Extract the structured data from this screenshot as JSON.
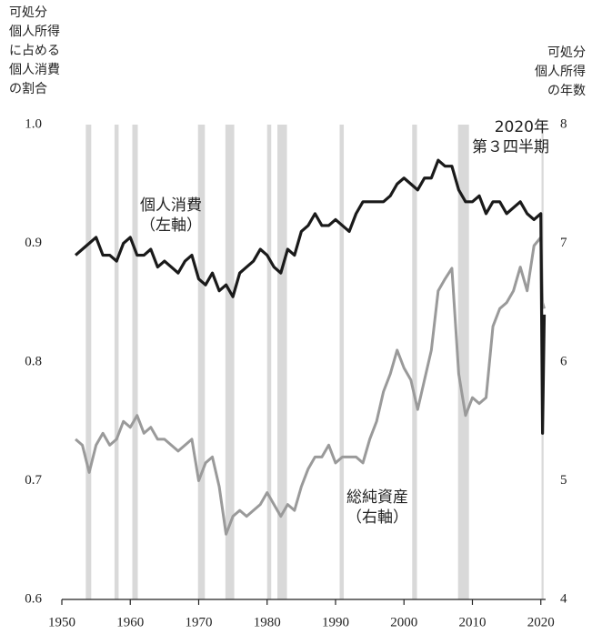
{
  "chart_data": {
    "type": "line",
    "y_axis_label": [
      "可処分",
      "個人所得",
      "に占める",
      "個人消費",
      "の割合"
    ],
    "y2_axis_label": [
      "可処分",
      "個人所得",
      "の年数"
    ],
    "annotations": [
      {
        "lines": [
          "2020年",
          "第３四半期"
        ]
      },
      {
        "lines": [
          "個人消費",
          "（左軸）"
        ]
      },
      {
        "lines": [
          "総純資産",
          "（右軸）"
        ]
      }
    ],
    "x": [
      1952,
      1953,
      1954,
      1955,
      1956,
      1957,
      1958,
      1959,
      1960,
      1961,
      1962,
      1963,
      1964,
      1965,
      1966,
      1967,
      1968,
      1969,
      1970,
      1971,
      1972,
      1973,
      1974,
      1975,
      1976,
      1977,
      1978,
      1979,
      1980,
      1981,
      1982,
      1983,
      1984,
      1985,
      1986,
      1987,
      1988,
      1989,
      1990,
      1991,
      1992,
      1993,
      1994,
      1995,
      1996,
      1997,
      1998,
      1999,
      2000,
      2001,
      2002,
      2003,
      2004,
      2005,
      2006,
      2007,
      2008,
      2009,
      2010,
      2011,
      2012,
      2013,
      2014,
      2015,
      2016,
      2017,
      2018,
      2019,
      2020,
      2020.25,
      2020.5
    ],
    "series": [
      {
        "name": "個人消費",
        "color": "#1a1a1a",
        "values": [
          0.89,
          0.895,
          0.9,
          0.905,
          0.89,
          0.89,
          0.885,
          0.9,
          0.905,
          0.89,
          0.89,
          0.895,
          0.88,
          0.885,
          0.88,
          0.875,
          0.885,
          0.89,
          0.87,
          0.865,
          0.875,
          0.86,
          0.865,
          0.855,
          0.875,
          0.88,
          0.885,
          0.895,
          0.89,
          0.88,
          0.875,
          0.895,
          0.89,
          0.91,
          0.915,
          0.925,
          0.915,
          0.915,
          0.92,
          0.915,
          0.91,
          0.925,
          0.935,
          0.935,
          0.935,
          0.935,
          0.94,
          0.95,
          0.955,
          0.95,
          0.945,
          0.955,
          0.955,
          0.97,
          0.965,
          0.965,
          0.945,
          0.935,
          0.935,
          0.94,
          0.925,
          0.935,
          0.935,
          0.925,
          0.93,
          0.935,
          0.925,
          0.92,
          0.925,
          0.74,
          0.84
        ]
      },
      {
        "name": "総純資産",
        "color": "#9a9a9a",
        "axis": "y2",
        "values": [
          5.35,
          5.3,
          5.07,
          5.3,
          5.4,
          5.3,
          5.35,
          5.5,
          5.45,
          5.55,
          5.4,
          5.45,
          5.35,
          5.35,
          5.3,
          5.25,
          5.3,
          5.35,
          5.0,
          5.15,
          5.2,
          4.95,
          4.55,
          4.7,
          4.75,
          4.7,
          4.75,
          4.8,
          4.9,
          4.8,
          4.7,
          4.8,
          4.75,
          4.95,
          5.1,
          5.2,
          5.2,
          5.3,
          5.15,
          5.2,
          5.2,
          5.2,
          5.15,
          5.35,
          5.5,
          5.75,
          5.9,
          6.1,
          5.95,
          5.85,
          5.6,
          5.85,
          6.1,
          6.6,
          6.7,
          6.79,
          5.9,
          5.55,
          5.7,
          5.65,
          5.7,
          6.3,
          6.45,
          6.5,
          6.6,
          6.8,
          6.6,
          6.98,
          7.05,
          6.5,
          6.45
        ]
      }
    ],
    "recessions": [
      [
        1953.5,
        1954.3
      ],
      [
        1957.7,
        1958.3
      ],
      [
        1960.3,
        1961.1
      ],
      [
        1969.9,
        1970.9
      ],
      [
        1973.9,
        1975.2
      ],
      [
        1980.0,
        1980.6
      ],
      [
        1981.5,
        1982.9
      ],
      [
        1990.6,
        1991.2
      ],
      [
        2001.2,
        2001.9
      ],
      [
        2007.9,
        2009.5
      ],
      [
        2020.1,
        2020.4
      ]
    ],
    "recession_color": "#d9d9d9",
    "xlim": [
      1950,
      2020.7
    ],
    "xticks": [
      1950,
      1960,
      1970,
      1980,
      1990,
      2000,
      2010,
      2020
    ],
    "ylim": [
      0.6,
      1.0
    ],
    "yticks": [
      0.6,
      0.7,
      0.8,
      0.9,
      {
        "value": 1,
        "label": "1.0"
      }
    ],
    "y2lim": [
      4,
      8
    ],
    "y2ticks": [
      4,
      5,
      6,
      7,
      8
    ]
  }
}
